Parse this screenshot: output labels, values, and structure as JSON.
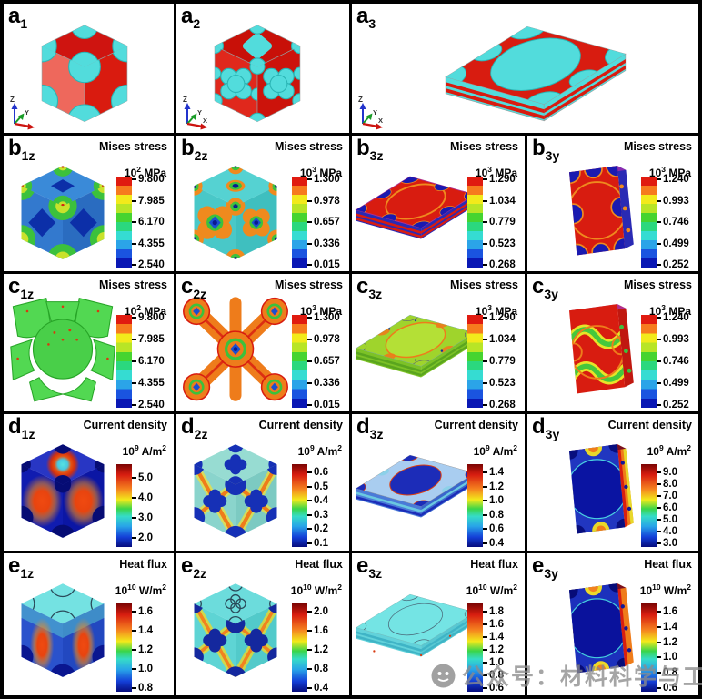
{
  "triad": {
    "x": "X",
    "y": "Y",
    "z": "Z"
  },
  "watermark": {
    "text": "公众号：材料科学与工程",
    "icon": "social-account-logo-icon"
  },
  "colors": {
    "matrix_red": "#d81c10",
    "inclusion_cyan": "#52dcdc",
    "colorbar_top": "#e01b10",
    "colorbar_bottom": "#0a18b4",
    "grid_line": "#000000"
  },
  "panels": {
    "a1": {
      "label": "a",
      "sub": "1"
    },
    "a2": {
      "label": "a",
      "sub": "2"
    },
    "a3": {
      "label": "a",
      "sub": "3"
    },
    "b1z": {
      "label": "b",
      "sub": "1z",
      "title": "Mises stress",
      "unit": {
        "pre": "10",
        "exp": "2",
        "mid": " MPa",
        "sup": ""
      },
      "ticks": [
        "9.800",
        "7.985",
        "6.170",
        "4.355",
        "2.540"
      ]
    },
    "b2z": {
      "label": "b",
      "sub": "2z",
      "title": "Mises stress",
      "unit": {
        "pre": "10",
        "exp": "3",
        "mid": " MPa",
        "sup": ""
      },
      "ticks": [
        "1.300",
        "0.978",
        "0.657",
        "0.336",
        "0.015"
      ]
    },
    "b3z": {
      "label": "b",
      "sub": "3z",
      "title": "Mises stress",
      "unit": {
        "pre": "10",
        "exp": "3",
        "mid": " MPa",
        "sup": ""
      },
      "ticks": [
        "1.290",
        "1.034",
        "0.779",
        "0.523",
        "0.268"
      ]
    },
    "b3y": {
      "label": "b",
      "sub": "3y",
      "title": "Mises stress",
      "unit": {
        "pre": "10",
        "exp": "3",
        "mid": " MPa",
        "sup": ""
      },
      "ticks": [
        "1.240",
        "0.993",
        "0.746",
        "0.499",
        "0.252"
      ]
    },
    "c1z": {
      "label": "c",
      "sub": "1z",
      "title": "Mises stress",
      "unit": {
        "pre": "10",
        "exp": "2",
        "mid": " MPa",
        "sup": ""
      },
      "ticks": [
        "9.800",
        "7.985",
        "6.170",
        "4.355",
        "2.540"
      ]
    },
    "c2z": {
      "label": "c",
      "sub": "2z",
      "title": "Mises stress",
      "unit": {
        "pre": "10",
        "exp": "3",
        "mid": " MPa",
        "sup": ""
      },
      "ticks": [
        "1.300",
        "0.978",
        "0.657",
        "0.336",
        "0.015"
      ]
    },
    "c3z": {
      "label": "c",
      "sub": "3z",
      "title": "Mises stress",
      "unit": {
        "pre": "10",
        "exp": "3",
        "mid": " MPa",
        "sup": ""
      },
      "ticks": [
        "1.290",
        "1.034",
        "0.779",
        "0.523",
        "0.268"
      ]
    },
    "c3y": {
      "label": "c",
      "sub": "3y",
      "title": "Mises stress",
      "unit": {
        "pre": "10",
        "exp": "3",
        "mid": " MPa",
        "sup": ""
      },
      "ticks": [
        "1.240",
        "0.993",
        "0.746",
        "0.499",
        "0.252"
      ]
    },
    "d1z": {
      "label": "d",
      "sub": "1z",
      "title": "Current density",
      "unit": {
        "pre": "10",
        "exp": "9",
        "mid": " A/m",
        "sup": "2"
      },
      "ticks": [
        "5.0",
        "4.0",
        "3.0",
        "2.0"
      ]
    },
    "d2z": {
      "label": "d",
      "sub": "2z",
      "title": "Current density",
      "unit": {
        "pre": "10",
        "exp": "9",
        "mid": " A/m",
        "sup": "2"
      },
      "ticks": [
        "0.6",
        "0.5",
        "0.4",
        "0.3",
        "0.2",
        "0.1"
      ]
    },
    "d3z": {
      "label": "d",
      "sub": "3z",
      "title": "Current density",
      "unit": {
        "pre": "10",
        "exp": "9",
        "mid": " A/m",
        "sup": "2"
      },
      "ticks": [
        "1.4",
        "1.2",
        "1.0",
        "0.8",
        "0.6",
        "0.4"
      ]
    },
    "d3y": {
      "label": "d",
      "sub": "3y",
      "title": "Current density",
      "unit": {
        "pre": "10",
        "exp": "9",
        "mid": " A/m",
        "sup": "2"
      },
      "ticks": [
        "9.0",
        "8.0",
        "7.0",
        "6.0",
        "5.0",
        "4.0",
        "3.0"
      ]
    },
    "e1z": {
      "label": "e",
      "sub": "1z",
      "title": "Heat flux",
      "unit": {
        "pre": "10",
        "exp": "10",
        "mid": " W/m",
        "sup": "2"
      },
      "ticks": [
        "1.6",
        "1.4",
        "1.2",
        "1.0",
        "0.8"
      ]
    },
    "e2z": {
      "label": "e",
      "sub": "2z",
      "title": "Heat flux",
      "unit": {
        "pre": "10",
        "exp": "10",
        "mid": " W/m",
        "sup": "2"
      },
      "ticks": [
        "2.0",
        "1.6",
        "1.2",
        "0.8",
        "0.4"
      ]
    },
    "e3z": {
      "label": "e",
      "sub": "3z",
      "title": "Heat flux",
      "unit": {
        "pre": "10",
        "exp": "10",
        "mid": " W/m",
        "sup": "2"
      },
      "ticks": [
        "1.8",
        "1.6",
        "1.4",
        "1.2",
        "1.0",
        "0.8",
        "0.6"
      ]
    },
    "e3y": {
      "label": "e",
      "sub": "3y",
      "title": "Heat flux",
      "unit": {
        "pre": "10",
        "exp": "10",
        "mid": " W/m",
        "sup": "2"
      },
      "ticks": [
        "1.6",
        "1.4",
        "1.2",
        "1.0",
        "0.8",
        "0.6"
      ]
    }
  }
}
